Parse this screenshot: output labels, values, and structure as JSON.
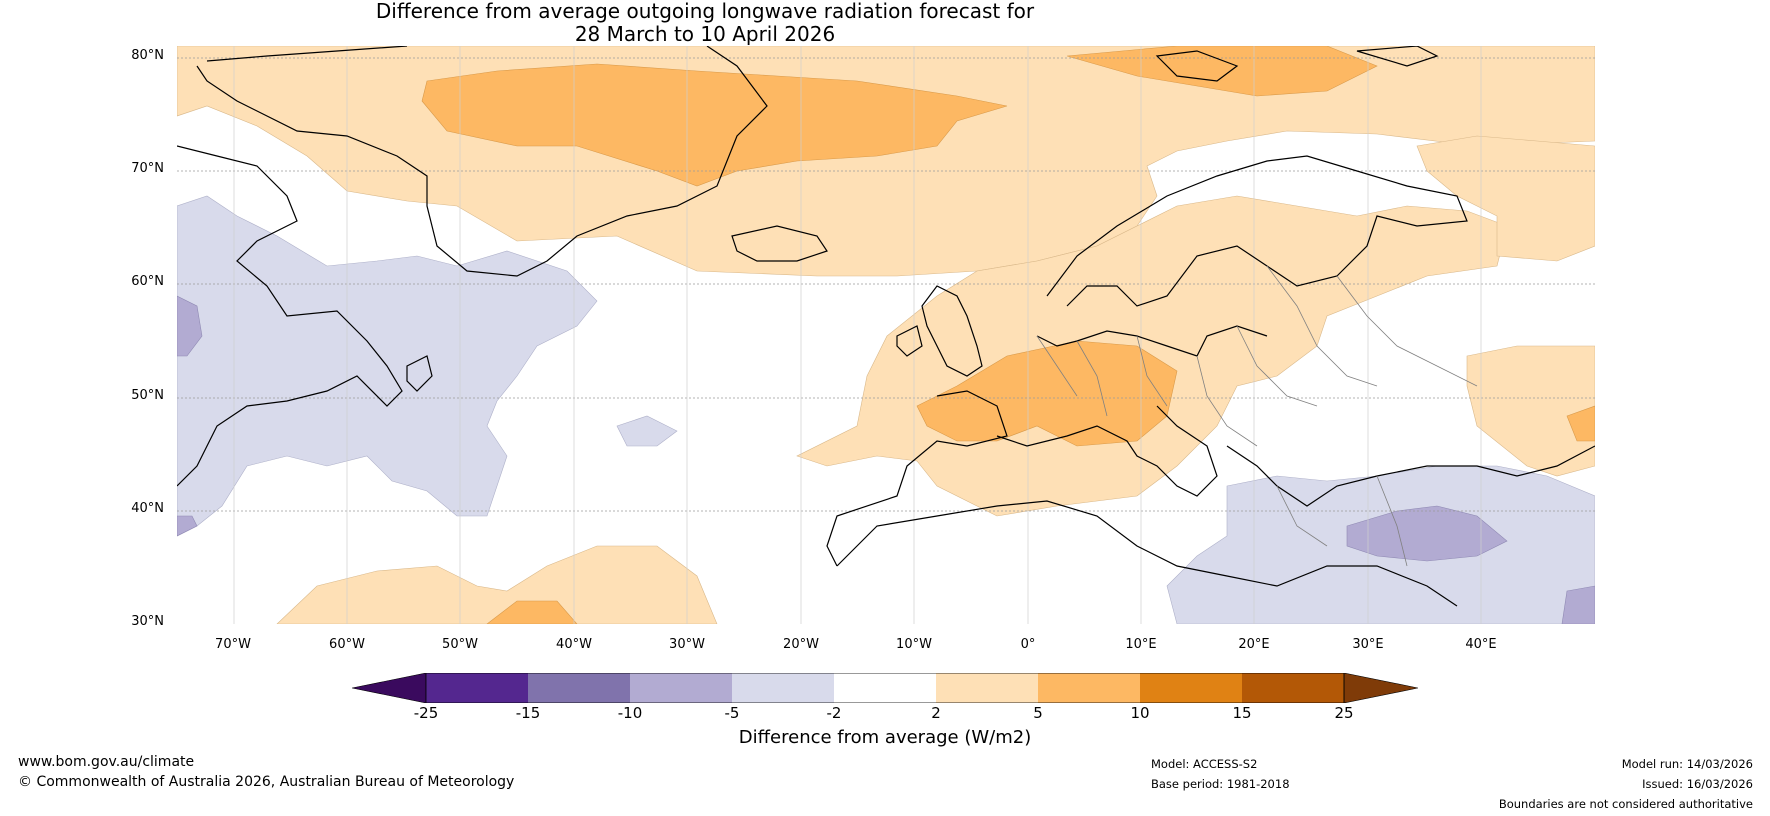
{
  "title": {
    "line1": "Difference from average outgoing longwave radiation forecast for",
    "line2": "28 March to 10 April 2026"
  },
  "map": {
    "lat_labels": [
      "80°N",
      "70°N",
      "60°N",
      "50°N",
      "40°N",
      "30°N"
    ],
    "lon_labels": [
      "70°W",
      "60°W",
      "50°W",
      "40°W",
      "30°W",
      "20°W",
      "10°W",
      "0°",
      "10°E",
      "20°E",
      "30°E",
      "40°E"
    ],
    "lat_range": [
      30,
      80
    ],
    "lon_range": [
      -75,
      50
    ]
  },
  "colorbar": {
    "ticks": [
      "-25",
      "-15",
      "-10",
      "-5",
      "-2",
      "2",
      "5",
      "10",
      "15",
      "25"
    ],
    "colors": [
      "#3a0a5e",
      "#54278f",
      "#8073ac",
      "#b2abd2",
      "#d8daeb",
      "#ffffff",
      "#fee0b6",
      "#fdb863",
      "#e08214",
      "#b35806",
      "#7f3b08"
    ],
    "label": "Difference from average (W/m2)"
  },
  "footer": {
    "website": "www.bom.gov.au/climate",
    "copyright": "© Commonwealth of Australia 2026, Australian Bureau of Meteorology",
    "model": "Model: ACCESS-S2",
    "base_period": "Base period: 1981-2018",
    "model_run": "Model run: 14/03/2026",
    "issued": "Issued: 16/03/2026",
    "disclaimer": "Boundaries are not considered authoritative"
  }
}
